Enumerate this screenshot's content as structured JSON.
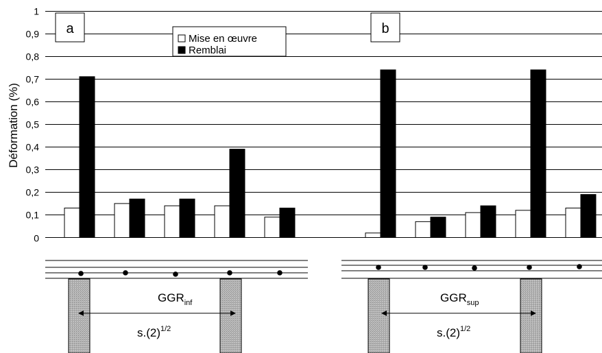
{
  "chart_data": {
    "type": "bar",
    "ylabel": "Déformation (%)",
    "ylim": [
      0,
      1
    ],
    "yticks": [
      "0",
      "0,1",
      "0,2",
      "0,3",
      "0,4",
      "0,5",
      "0,6",
      "0,7",
      "0,8",
      "0,9",
      "1"
    ],
    "grid": true,
    "legend": {
      "placement": "top-center",
      "series": [
        "Mise en œuvre",
        "Remblai"
      ]
    },
    "panels": [
      {
        "label": "a",
        "series": [
          {
            "name": "Mise en œuvre",
            "color": "#ffffff",
            "values": [
              0.13,
              0.15,
              0.14,
              0.14,
              0.09
            ]
          },
          {
            "name": "Remblai",
            "color": "#000000",
            "values": [
              0.71,
              0.17,
              0.17,
              0.39,
              0.13
            ]
          }
        ],
        "diagram_label": "GGR",
        "diagram_label_sub": "inf",
        "spacing_label": "s.(2)",
        "spacing_label_sup": "1/2"
      },
      {
        "label": "b",
        "series": [
          {
            "name": "Mise en œuvre",
            "color": "#ffffff",
            "values": [
              0.02,
              0.07,
              0.11,
              0.12,
              0.13
            ]
          },
          {
            "name": "Remblai",
            "color": "#000000",
            "values": [
              0.74,
              0.09,
              0.14,
              0.74,
              0.19
            ]
          }
        ],
        "diagram_label": "GGR",
        "diagram_label_sub": "sup",
        "spacing_label": "s.(2)",
        "spacing_label_sup": "1/2"
      }
    ]
  }
}
